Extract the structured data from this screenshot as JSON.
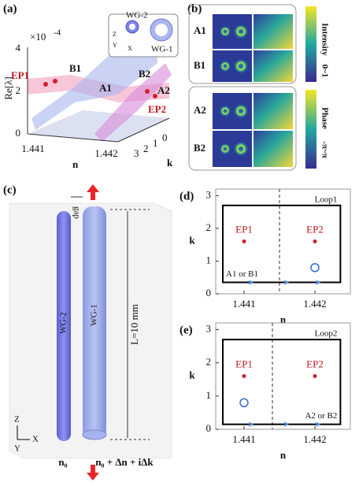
{
  "a": {
    "label": "(a)",
    "zlabel": "Re[λ]",
    "exponent": "×10",
    "exponent_power": "-4",
    "zticks": [
      "0",
      "2",
      "4"
    ],
    "xlabel": "n",
    "xticks": [
      "1.441",
      "1.442"
    ],
    "ylabel": "k",
    "yticks": [
      "3",
      "2",
      "1",
      "0"
    ],
    "annotations": [
      "EP1",
      "B1",
      "A1",
      "B2",
      "A2",
      "EP2"
    ],
    "inset": [
      "WG-2",
      "WG-1"
    ],
    "inset_axes": [
      "Z",
      "Y",
      "X"
    ]
  },
  "b": {
    "label": "(b)",
    "rows": [
      "A1",
      "B1",
      "A2",
      "B2"
    ],
    "colorbars": [
      {
        "name": "Intensity",
        "range": "0~1"
      },
      {
        "name": "Phase",
        "range": "-π~π"
      }
    ]
  },
  "c": {
    "label": "(c)",
    "waveguides": [
      "WG-2",
      "WG-1"
    ],
    "gap": "gap",
    "length": "L=10 mm",
    "n_left": "n₀",
    "n_right": "n₀ + Δn + iΔk",
    "axes": [
      "Z",
      "X",
      "Y"
    ]
  },
  "charts": [
    {
      "type": "scatter",
      "label": "(d)",
      "xlabel": "n",
      "ylabel": "k",
      "xlim": [
        1.4406,
        1.4425
      ],
      "ylim": [
        0,
        3.2
      ],
      "xticks": [
        1.441,
        1.442
      ],
      "yticks": [
        0,
        1,
        2,
        3
      ],
      "loop": {
        "name": "Loop1",
        "x": [
          1.4407,
          1.44236
        ],
        "y": [
          0.35,
          2.7
        ]
      },
      "boundary": 1.4415,
      "points": [
        {
          "name": "EP1",
          "x": 1.441,
          "y": 1.6
        },
        {
          "name": "EP2",
          "x": 1.442,
          "y": 1.6
        }
      ],
      "start": {
        "x": 1.442,
        "y": 0.8
      },
      "path_label": "A1 or B1"
    },
    {
      "type": "scatter",
      "label": "(e)",
      "xlabel": "n",
      "ylabel": "k",
      "xlim": [
        1.4406,
        1.4425
      ],
      "ylim": [
        0,
        3.2
      ],
      "xticks": [
        1.441,
        1.442
      ],
      "yticks": [
        0,
        1,
        2,
        3
      ],
      "loop": {
        "name": "Loop2",
        "x": [
          1.4407,
          1.44236
        ],
        "y": [
          0.15,
          2.7
        ]
      },
      "boundary": 1.4414,
      "points": [
        {
          "name": "EP1",
          "x": 1.441,
          "y": 1.6
        },
        {
          "name": "EP2",
          "x": 1.442,
          "y": 1.6
        }
      ],
      "start": {
        "x": 1.441,
        "y": 0.8
      },
      "path_label": "A2 or B2"
    }
  ]
}
